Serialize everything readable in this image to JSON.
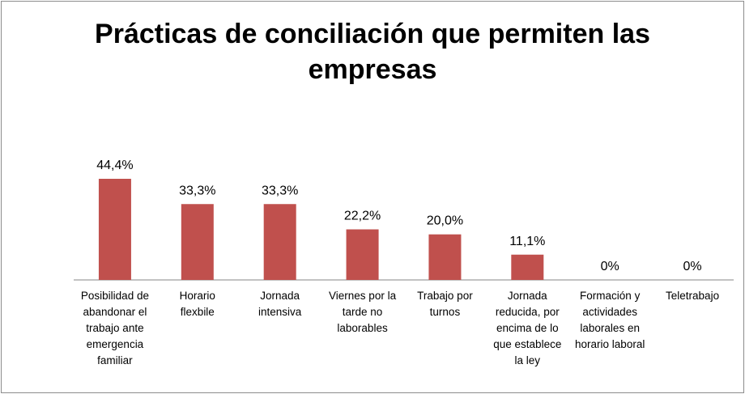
{
  "chart_data": {
    "type": "bar",
    "title_lines": [
      "Prácticas de conciliación que permiten las",
      "empresas"
    ],
    "categories": [
      [
        "Posibilidad de",
        "abandonar el",
        "trabajo ante",
        "emergencia",
        "familiar"
      ],
      [
        "Horario",
        "flexbile"
      ],
      [
        "Jornada",
        "intensiva"
      ],
      [
        "Viernes por la",
        "tarde no",
        "laborables"
      ],
      [
        "Trabajo por",
        "turnos"
      ],
      [
        "Jornada",
        "reducida, por",
        "encima de lo",
        "que establece",
        "la ley"
      ],
      [
        "Formación y",
        "actividades",
        "laborales en",
        "horario laboral"
      ],
      [
        "Teletrabajo"
      ]
    ],
    "values": [
      44.4,
      33.3,
      33.3,
      22.2,
      20.0,
      11.1,
      0,
      0
    ],
    "data_labels": [
      "44,4%",
      "33,3%",
      "33,3%",
      "22,2%",
      "20,0%",
      "11,1%",
      "0%",
      "0%"
    ],
    "ylim": [
      0,
      50
    ],
    "grid": false,
    "legend": "none",
    "bar_color": "#c0504d"
  }
}
